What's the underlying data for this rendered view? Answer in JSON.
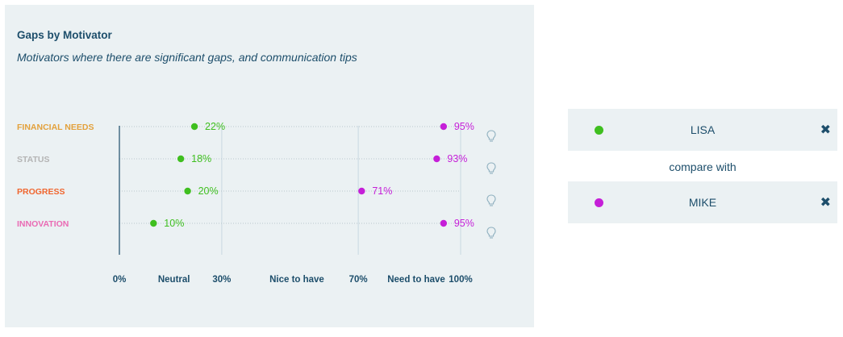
{
  "chart_data": {
    "type": "scatter",
    "title": "Gaps by Motivator",
    "subtitle": "Motivators where there are significant gaps, and communication tips",
    "categories": [
      "FINANCIAL NEEDS",
      "STATUS",
      "PROGRESS",
      "INNOVATION"
    ],
    "category_colors": [
      "#e3a13c",
      "#b4b4b4",
      "#f0662f",
      "#ea6bb4"
    ],
    "series": [
      {
        "name": "LISA",
        "color": "#3fbf1f",
        "values": [
          22,
          18,
          20,
          10
        ],
        "labels": [
          "22%",
          "18%",
          "20%",
          "10%"
        ]
      },
      {
        "name": "MIKE",
        "color": "#c51fd8",
        "values": [
          95,
          93,
          71,
          95
        ],
        "labels": [
          "95%",
          "93%",
          "71%",
          "95%"
        ]
      }
    ],
    "xlim": [
      0,
      100
    ],
    "x_ticks": [
      {
        "value": 0,
        "label": "0%"
      },
      {
        "value": 30,
        "label": "30%"
      },
      {
        "value": 70,
        "label": "70%"
      },
      {
        "value": 100,
        "label": "100%"
      }
    ],
    "x_zones": [
      {
        "center": 16,
        "label": "Neutral"
      },
      {
        "center": 52,
        "label": "Nice to have"
      },
      {
        "center": 87,
        "label": "Need to have"
      }
    ],
    "gridlines": [
      30,
      70,
      100
    ],
    "tip_icon": "lightbulb-icon"
  },
  "compare": {
    "person1": {
      "name": "LISA",
      "color": "#3fbf1f",
      "close_icon": "close-icon"
    },
    "connector": "compare with",
    "person2": {
      "name": "MIKE",
      "color": "#c51fd8",
      "close_icon": "close-icon"
    }
  },
  "colors": {
    "panel": "#ebf1f3",
    "text": "#1d4e6b",
    "grid": "#c9d9e0",
    "axis": "#1d4e6b"
  }
}
